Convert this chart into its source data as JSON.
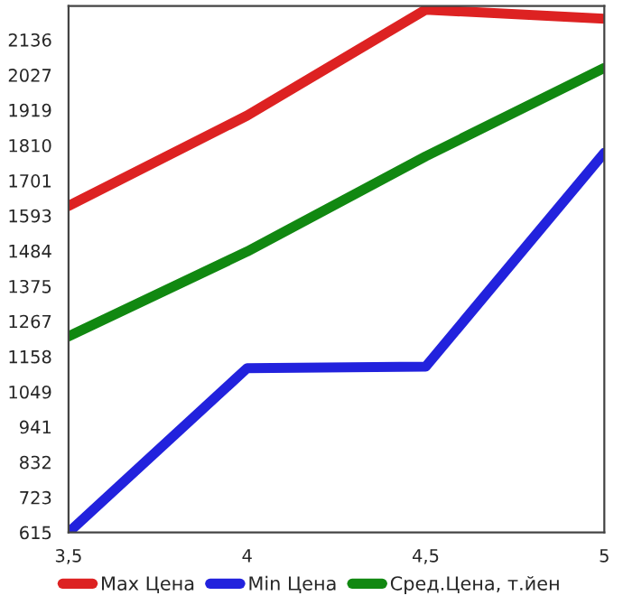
{
  "chart_data": {
    "type": "line",
    "x": [
      3.5,
      4,
      4.5,
      5
    ],
    "series": [
      {
        "name": "Max Цена",
        "color": "#dd2222",
        "values": [
          1623,
          1902,
          2229,
          2201
        ]
      },
      {
        "name": "Min Цена",
        "color": "#2222dd",
        "values": [
          615,
          1122,
          1127,
          1787
        ]
      },
      {
        "name": "Сред.Цена, т.йен",
        "color": "#118811",
        "values": [
          1220,
          1482,
          1776,
          2049
        ]
      }
    ],
    "xlim": [
      3.5,
      5
    ],
    "xticks": [
      {
        "value": 3.5,
        "label": "3,5"
      },
      4,
      {
        "value": 4.5,
        "label": "4,5"
      },
      5
    ],
    "ylim": [
      615,
      2240
    ],
    "yticks": [
      615,
      723,
      832,
      941,
      1049,
      1158,
      1267,
      1375,
      1484,
      1593,
      1701,
      1810,
      1919,
      2027,
      2136
    ],
    "grid": false,
    "legend": "bottom",
    "marker": "none",
    "line_style": "solid"
  }
}
